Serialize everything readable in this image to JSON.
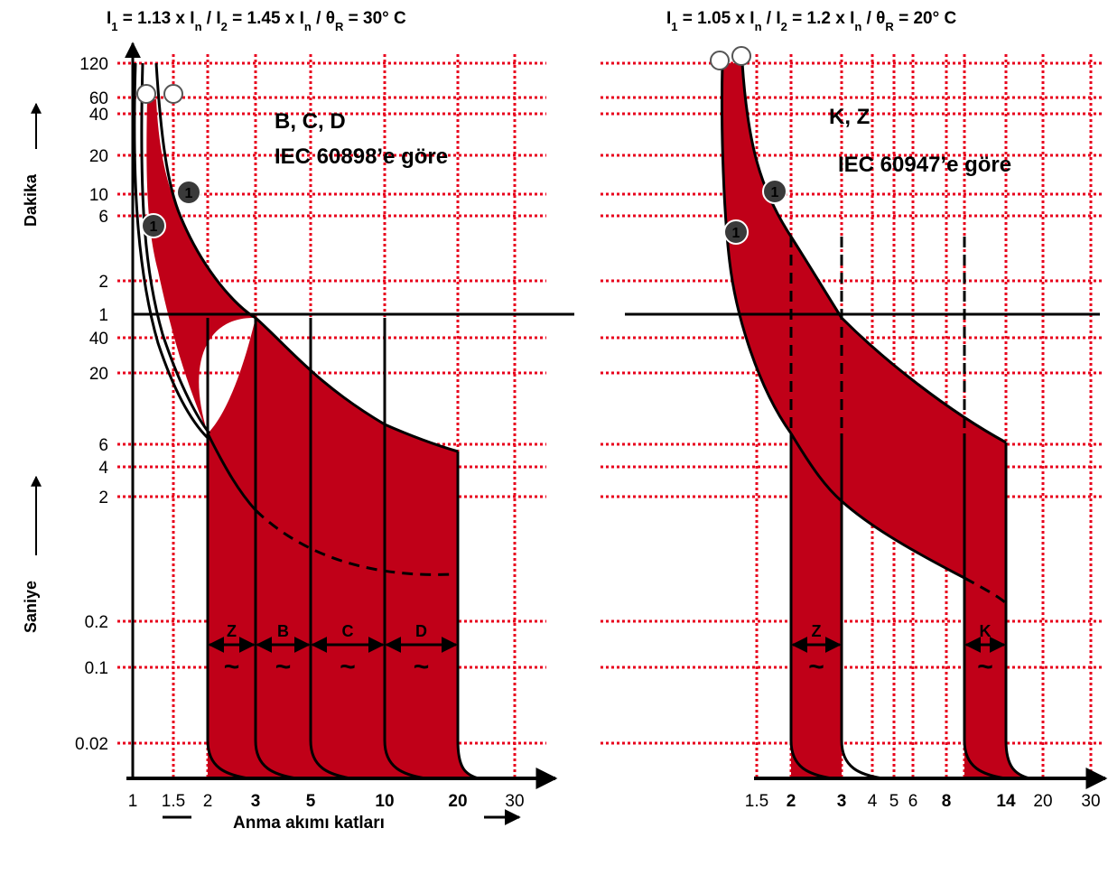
{
  "chart_data": [
    {
      "type": "line",
      "title": "I₁ = 1.13 x Iₙ / I₂ = 1.45 x Iₙ / θR = 30° C",
      "title_parts": [
        "I",
        "1",
        " = 1.13 x I",
        "n",
        "  /  I",
        "2",
        " = 1.45 x I",
        "n",
        "  /  θ",
        "R",
        " = 30° C"
      ],
      "standard_line1": "B, C, D",
      "standard_line2": "IEC 60898’e göre",
      "xlabel": "Anma akımı katları",
      "x_ticks": [
        {
          "v": 1,
          "label": "1",
          "bold": false
        },
        {
          "v": 1.5,
          "label": "1.5",
          "bold": false
        },
        {
          "v": 2,
          "label": "2",
          "bold": false
        },
        {
          "v": 3,
          "label": "3",
          "bold": true
        },
        {
          "v": 5,
          "label": "5",
          "bold": true
        },
        {
          "v": 10,
          "label": "10",
          "bold": true
        },
        {
          "v": 20,
          "label": "20",
          "bold": true
        },
        {
          "v": 30,
          "label": "30",
          "bold": false
        }
      ],
      "bands": [
        {
          "name": "Z",
          "x_from": 2,
          "x_to": 3
        },
        {
          "name": "B",
          "x_from": 3,
          "x_to": 5
        },
        {
          "name": "C",
          "x_from": 5,
          "x_to": 10
        },
        {
          "name": "D",
          "x_from": 10,
          "x_to": 20
        }
      ],
      "upper_curve_time_s": {
        "x": [
          1.45,
          3,
          5,
          10,
          20
        ],
        "y": [
          3600,
          60,
          25,
          8,
          5
        ]
      },
      "marker_label": "1",
      "tilde": "~"
    },
    {
      "type": "line",
      "title": "I₁ = 1.05 x Iₙ / I₂ = 1.2 x Iₙ / θR = 20° C",
      "title_parts": [
        "I",
        "1",
        " = 1.05 x I",
        "n",
        "  /  I",
        "2",
        " = 1.2 x I",
        "n",
        "  /  θ",
        "R",
        " = 20° C"
      ],
      "standard_line1": "K, Z",
      "standard_line2": "IEC 60947’e göre",
      "x_ticks": [
        {
          "v": 1.5,
          "label": "1.5",
          "bold": false
        },
        {
          "v": 2,
          "label": "2",
          "bold": true
        },
        {
          "v": 3,
          "label": "3",
          "bold": true
        },
        {
          "v": 4,
          "label": "4",
          "bold": false
        },
        {
          "v": 5,
          "label": "5",
          "bold": false
        },
        {
          "v": 6,
          "label": "6",
          "bold": false
        },
        {
          "v": 8,
          "label": "8",
          "bold": true
        },
        {
          "v": 14,
          "label": "14",
          "bold": true
        },
        {
          "v": 20,
          "label": "20",
          "bold": false
        },
        {
          "v": 30,
          "label": "30",
          "bold": false
        }
      ],
      "bands": [
        {
          "name": "Z",
          "x_from": 2,
          "x_to": 3
        },
        {
          "name": "K",
          "x_from": 8,
          "x_to": 14
        }
      ],
      "marker_label": "1",
      "tilde": "~"
    }
  ],
  "y_axis": {
    "minutes_label": "Dakika",
    "seconds_label": "Saniye",
    "minute_ticks": [
      "120",
      "60",
      "40",
      "20",
      "10",
      "6",
      "2",
      "1"
    ],
    "second_ticks": [
      "40",
      "20",
      "6",
      "4",
      "2",
      "0.2",
      "0.1",
      "0.02"
    ]
  },
  "colors": {
    "fill": "#c00018",
    "grid": "#e8001c",
    "line": "#000000"
  }
}
